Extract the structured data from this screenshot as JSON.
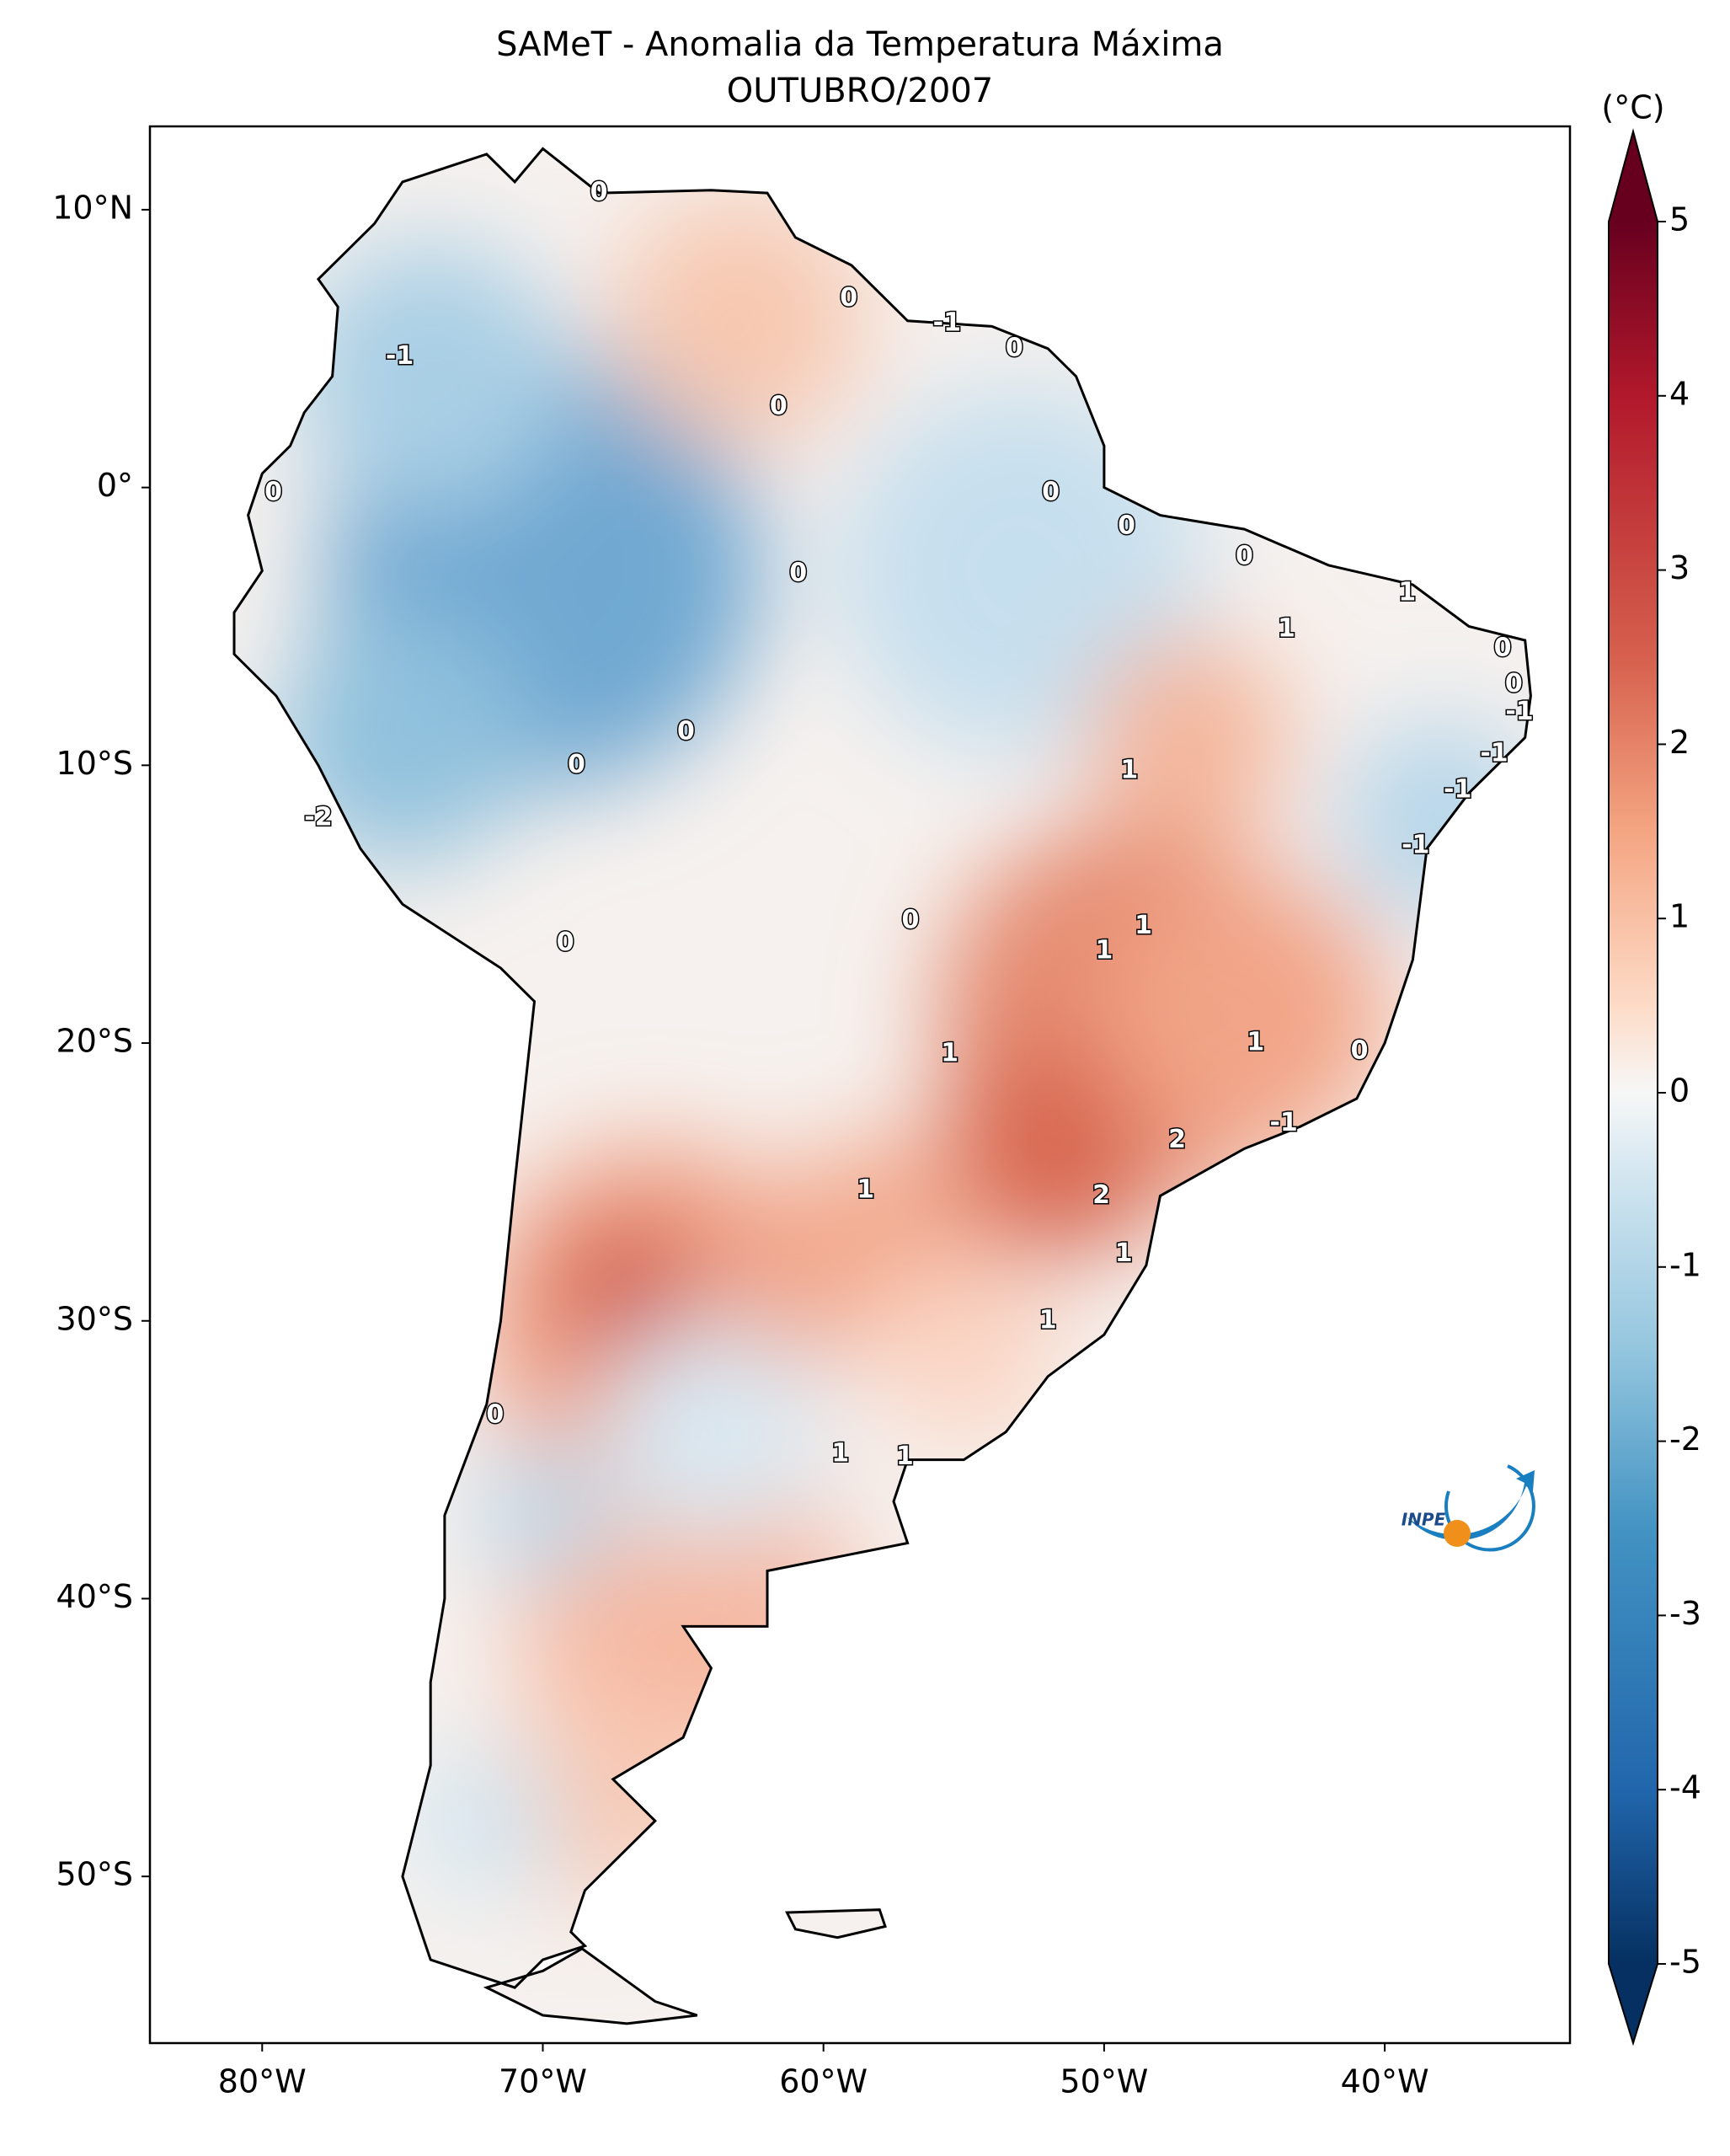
{
  "chart_data": {
    "type": "map",
    "title": "SAMeT - Anomalia da Temperatura Máxima",
    "subtitle": "OUTUBRO/2007",
    "colorbar_label": "(°C)",
    "colorbar_lim": [
      -5,
      5
    ],
    "colorbar_ticks": [
      -5,
      -4,
      -3,
      -2,
      -1,
      0,
      1,
      2,
      3,
      4,
      5
    ],
    "xlim": [
      -84,
      -33.4
    ],
    "ylim": [
      -56,
      13
    ],
    "xticks": [
      {
        "value": -80,
        "label": "80°W"
      },
      {
        "value": -70,
        "label": "70°W"
      },
      {
        "value": -60,
        "label": "60°W"
      },
      {
        "value": -50,
        "label": "50°W"
      },
      {
        "value": -40,
        "label": "40°W"
      }
    ],
    "yticks": [
      {
        "value": 10,
        "label": "10°N"
      },
      {
        "value": 0,
        "label": "0°"
      },
      {
        "value": -10,
        "label": "10°S"
      },
      {
        "value": -20,
        "label": "20°S"
      },
      {
        "value": -30,
        "label": "30°S"
      },
      {
        "value": -40,
        "label": "40°S"
      },
      {
        "value": -50,
        "label": "50°S"
      }
    ],
    "contour_labels": [
      {
        "value": 0,
        "lon": -68.0,
        "lat": 10.6
      },
      {
        "value": 0,
        "lon": -59.1,
        "lat": 6.8
      },
      {
        "value": -1,
        "lon": -55.6,
        "lat": 5.9
      },
      {
        "value": 0,
        "lon": -53.2,
        "lat": 5.0
      },
      {
        "value": -1,
        "lon": -75.1,
        "lat": 4.7
      },
      {
        "value": 0,
        "lon": -61.6,
        "lat": 2.9
      },
      {
        "value": 0,
        "lon": -79.6,
        "lat": -0.2
      },
      {
        "value": 0,
        "lon": -51.9,
        "lat": -0.2
      },
      {
        "value": 0,
        "lon": -49.2,
        "lat": -1.4
      },
      {
        "value": 0,
        "lon": -45.0,
        "lat": -2.5
      },
      {
        "value": 0,
        "lon": -60.9,
        "lat": -3.1
      },
      {
        "value": 1,
        "lon": -39.2,
        "lat": -3.8
      },
      {
        "value": 1,
        "lon": -43.5,
        "lat": -5.1
      },
      {
        "value": 0,
        "lon": -35.8,
        "lat": -5.8
      },
      {
        "value": 0,
        "lon": -35.4,
        "lat": -7.1
      },
      {
        "value": -1,
        "lon": -35.2,
        "lat": -8.1
      },
      {
        "value": 0,
        "lon": -64.9,
        "lat": -8.8
      },
      {
        "value": -1,
        "lon": -36.1,
        "lat": -9.6
      },
      {
        "value": 0,
        "lon": -68.8,
        "lat": -10.0
      },
      {
        "value": 1,
        "lon": -49.1,
        "lat": -10.2
      },
      {
        "value": -1,
        "lon": -37.4,
        "lat": -10.9
      },
      {
        "value": -2,
        "lon": -78.0,
        "lat": -11.9
      },
      {
        "value": -1,
        "lon": -38.9,
        "lat": -12.9
      },
      {
        "value": 0,
        "lon": -56.9,
        "lat": -15.6
      },
      {
        "value": 1,
        "lon": -48.6,
        "lat": -15.8
      },
      {
        "value": 1,
        "lon": -50.0,
        "lat": -16.7
      },
      {
        "value": 0,
        "lon": -69.2,
        "lat": -16.4
      },
      {
        "value": 1,
        "lon": -44.6,
        "lat": -20.0
      },
      {
        "value": 0,
        "lon": -40.9,
        "lat": -20.3
      },
      {
        "value": 1,
        "lon": -55.5,
        "lat": -20.4
      },
      {
        "value": -1,
        "lon": -43.6,
        "lat": -22.9
      },
      {
        "value": 2,
        "lon": -47.4,
        "lat": -23.5
      },
      {
        "value": 2,
        "lon": -50.1,
        "lat": -25.5
      },
      {
        "value": 1,
        "lon": -58.5,
        "lat": -25.3
      },
      {
        "value": 1,
        "lon": -49.3,
        "lat": -27.6
      },
      {
        "value": 1,
        "lon": -52.0,
        "lat": -30.0
      },
      {
        "value": 0,
        "lon": -71.7,
        "lat": -33.4
      },
      {
        "value": 1,
        "lon": -59.4,
        "lat": -34.8
      },
      {
        "value": 1,
        "lon": -57.1,
        "lat": -34.9
      }
    ],
    "logo_text": "INPE"
  }
}
